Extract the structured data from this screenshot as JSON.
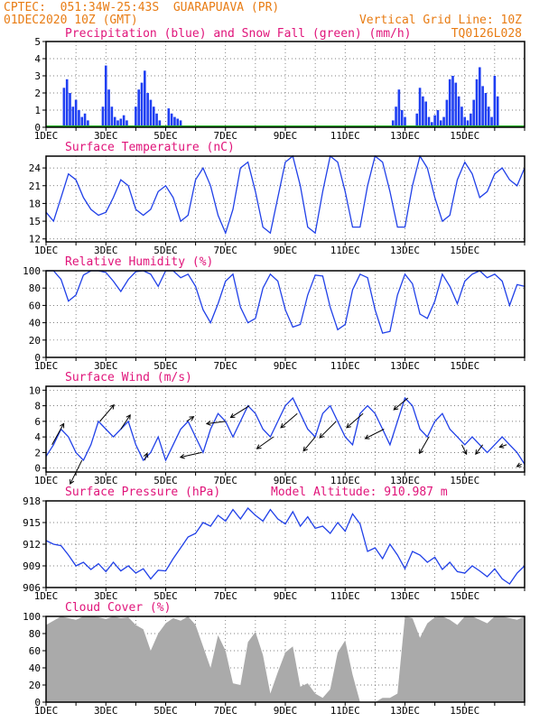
{
  "header": {
    "line1": "CPTEC:  051:34W-25:43S  GUARAPUAVA (PR)",
    "line2": "01DEC2020 10Z (GMT)",
    "grid_note": "Vertical Grid Line: 10Z",
    "code": "TQ0126L028"
  },
  "x_axis": {
    "ticks": [
      "1DEC",
      "3DEC",
      "5DEC",
      "7DEC",
      "9DEC",
      "11DEC",
      "13DEC",
      "15DEC"
    ]
  },
  "chart_data": [
    {
      "id": "precip",
      "type": "bar",
      "title": "Precipitation (blue) and Snow Fall (green) (mm/h)",
      "ylim": [
        0,
        5
      ],
      "yticks": [
        0,
        1,
        2,
        3,
        4,
        5
      ],
      "series": [
        {
          "name": "Precipitation",
          "color": "#1f3ff2",
          "x": [
            0.6,
            0.7,
            0.8,
            0.9,
            1.0,
            1.1,
            1.2,
            1.3,
            1.4,
            1.9,
            2.0,
            2.1,
            2.2,
            2.3,
            2.4,
            2.5,
            2.6,
            2.7,
            3.0,
            3.1,
            3.2,
            3.3,
            3.4,
            3.5,
            3.6,
            3.7,
            3.8,
            4.1,
            4.2,
            4.3,
            4.4,
            4.5,
            11.6,
            11.7,
            11.8,
            11.9,
            12.0,
            12.4,
            12.5,
            12.6,
            12.7,
            12.8,
            12.9,
            13.0,
            13.1,
            13.2,
            13.3,
            13.4,
            13.5,
            13.6,
            13.7,
            13.8,
            13.9,
            14.0,
            14.1,
            14.2,
            14.3,
            14.4,
            14.5,
            14.6,
            14.7,
            14.8,
            14.9,
            15.0,
            15.1
          ],
          "values": [
            2.3,
            2.8,
            2.0,
            1.2,
            1.6,
            1.0,
            0.6,
            0.8,
            0.4,
            1.2,
            3.6,
            2.2,
            1.2,
            0.6,
            0.4,
            0.5,
            0.7,
            0.4,
            1.2,
            2.2,
            2.6,
            3.3,
            2.0,
            1.6,
            1.2,
            0.8,
            0.4,
            1.1,
            0.8,
            0.6,
            0.5,
            0.4,
            0.4,
            1.2,
            2.2,
            1.0,
            0.6,
            0.8,
            2.3,
            1.8,
            1.5,
            0.6,
            0.3,
            0.7,
            1.0,
            0.4,
            0.6,
            1.6,
            2.8,
            3.0,
            2.6,
            1.8,
            1.2,
            0.6,
            0.4,
            0.8,
            1.6,
            2.8,
            3.5,
            2.4,
            2.0,
            1.2,
            0.6,
            3.0,
            1.8
          ]
        }
      ],
      "snow_color": "#22b022"
    },
    {
      "id": "temp",
      "type": "line",
      "title": "Surface Temperature (nC)",
      "ylim": [
        11.5,
        26
      ],
      "yticks": [
        12,
        15,
        18,
        21,
        24
      ],
      "series": [
        {
          "name": "Temperature",
          "color": "#2040e8",
          "x": [
            0,
            0.25,
            0.5,
            0.75,
            1,
            1.25,
            1.5,
            1.75,
            2,
            2.25,
            2.5,
            2.75,
            3,
            3.25,
            3.5,
            3.75,
            4,
            4.25,
            4.5,
            4.75,
            5,
            5.25,
            5.5,
            5.75,
            6,
            6.25,
            6.5,
            6.75,
            7,
            7.25,
            7.5,
            7.75,
            8,
            8.25,
            8.5,
            8.75,
            9,
            9.25,
            9.5,
            9.75,
            10,
            10.25,
            10.5,
            10.75,
            11,
            11.25,
            11.5,
            11.75,
            12,
            12.25,
            12.5,
            12.75,
            13,
            13.25,
            13.5,
            13.75,
            14,
            14.25,
            14.5,
            14.75,
            15,
            15.25,
            15.5,
            15.75,
            16
          ],
          "values": [
            16.5,
            15,
            19,
            23,
            22,
            19,
            17,
            16,
            16.5,
            19,
            22,
            21,
            17,
            16,
            17,
            20,
            21,
            19,
            15,
            16,
            22,
            24,
            21,
            16,
            13,
            17,
            24,
            25,
            20,
            14,
            13,
            19,
            25,
            26,
            21,
            14,
            13,
            20,
            26,
            25,
            20,
            14,
            14,
            21,
            26,
            25,
            20,
            14,
            14,
            21,
            26,
            24,
            19,
            15,
            16,
            22,
            25,
            23,
            19,
            20,
            23,
            24,
            22,
            21,
            24
          ]
        }
      ]
    },
    {
      "id": "rh",
      "type": "line",
      "title": "Relative Humidity (%)",
      "ylim": [
        0,
        100
      ],
      "yticks": [
        0,
        20,
        40,
        60,
        80,
        100
      ],
      "series": [
        {
          "name": "Relative Humidity",
          "color": "#2040e8",
          "x": [
            0,
            0.25,
            0.5,
            0.75,
            1,
            1.25,
            1.5,
            1.75,
            2,
            2.25,
            2.5,
            2.75,
            3,
            3.25,
            3.5,
            3.75,
            4,
            4.25,
            4.5,
            4.75,
            5,
            5.25,
            5.5,
            5.75,
            6,
            6.25,
            6.5,
            6.75,
            7,
            7.25,
            7.5,
            7.75,
            8,
            8.25,
            8.5,
            8.75,
            9,
            9.25,
            9.5,
            9.75,
            10,
            10.25,
            10.5,
            10.75,
            11,
            11.25,
            11.5,
            11.75,
            12,
            12.25,
            12.5,
            12.75,
            13,
            13.25,
            13.5,
            13.75,
            14,
            14.25,
            14.5,
            14.75,
            15,
            15.25,
            15.5,
            15.75,
            16
          ],
          "values": [
            100,
            100,
            90,
            65,
            72,
            95,
            100,
            100,
            98,
            88,
            76,
            90,
            99,
            100,
            96,
            82,
            100,
            100,
            92,
            96,
            82,
            55,
            40,
            62,
            88,
            96,
            58,
            40,
            45,
            80,
            96,
            88,
            55,
            35,
            38,
            72,
            95,
            94,
            58,
            32,
            38,
            78,
            96,
            92,
            55,
            28,
            30,
            72,
            96,
            85,
            50,
            45,
            65,
            96,
            82,
            62,
            88,
            96,
            100,
            92,
            96,
            88,
            60,
            84,
            82
          ]
        }
      ]
    },
    {
      "id": "wind",
      "type": "line",
      "title": "Surface Wind (m/s)",
      "ylim": [
        -0.5,
        10.5
      ],
      "yticks": [
        0,
        2,
        4,
        6,
        8,
        10
      ],
      "series": [
        {
          "name": "Wind Speed",
          "color": "#2040e8",
          "x": [
            0,
            0.25,
            0.5,
            0.75,
            1,
            1.25,
            1.5,
            1.75,
            2,
            2.25,
            2.5,
            2.75,
            3,
            3.25,
            3.5,
            3.75,
            4,
            4.25,
            4.5,
            4.75,
            5,
            5.25,
            5.5,
            5.75,
            6,
            6.25,
            6.5,
            6.75,
            7,
            7.25,
            7.5,
            7.75,
            8,
            8.25,
            8.5,
            8.75,
            9,
            9.25,
            9.5,
            9.75,
            10,
            10.25,
            10.5,
            10.75,
            11,
            11.25,
            11.5,
            11.75,
            12,
            12.25,
            12.5,
            12.75,
            13,
            13.25,
            13.5,
            13.75,
            14,
            14.25,
            14.5,
            14.75,
            15,
            15.25,
            15.5,
            15.75,
            16
          ],
          "values": [
            1.5,
            3,
            5,
            4,
            2,
            1,
            3,
            6,
            5,
            4,
            5,
            6,
            3,
            1,
            2,
            4,
            1,
            3,
            5,
            6,
            4,
            2,
            5,
            7,
            6,
            4,
            6,
            8,
            7,
            5,
            4,
            6,
            8,
            9,
            7,
            5,
            4,
            7,
            8,
            6,
            4,
            3,
            7,
            8,
            7,
            5,
            3,
            6,
            9,
            8,
            5,
            4,
            6,
            7,
            5,
            4,
            3,
            4,
            3,
            2,
            3,
            4,
            3,
            2,
            0.5
          ]
        }
      ],
      "vectors": [
        {
          "x": 0.2,
          "dx": 0.5,
          "dy": -0.9
        },
        {
          "x": 1.2,
          "dx": -0.5,
          "dy": 1.0
        },
        {
          "x": 1.8,
          "dx": 0.6,
          "dy": -0.7
        },
        {
          "x": 2.5,
          "dx": 0.4,
          "dy": -0.6
        },
        {
          "x": 3.3,
          "dx": 0.1,
          "dy": -0.3
        },
        {
          "x": 4.7,
          "dx": 0.3,
          "dy": -0.2
        },
        {
          "x": 5.2,
          "dx": -0.9,
          "dy": 0.2
        },
        {
          "x": 6.0,
          "dx": -0.8,
          "dy": 0.1
        },
        {
          "x": 6.8,
          "dx": -0.8,
          "dy": 0.5
        },
        {
          "x": 7.6,
          "dx": -0.7,
          "dy": 0.5
        },
        {
          "x": 8.4,
          "dx": -0.7,
          "dy": 0.6
        },
        {
          "x": 9.0,
          "dx": -0.5,
          "dy": 0.6
        },
        {
          "x": 9.7,
          "dx": -0.7,
          "dy": 0.7
        },
        {
          "x": 10.6,
          "dx": -0.7,
          "dy": 0.6
        },
        {
          "x": 11.3,
          "dx": -0.8,
          "dy": 0.4
        },
        {
          "x": 12.1,
          "dx": -0.6,
          "dy": 0.5
        },
        {
          "x": 12.8,
          "dx": -0.4,
          "dy": 0.7
        },
        {
          "x": 13.9,
          "dx": 0.2,
          "dy": 0.4
        },
        {
          "x": 14.6,
          "dx": -0.3,
          "dy": 0.4
        },
        {
          "x": 15.4,
          "dx": -0.3,
          "dy": 0.1
        },
        {
          "x": 15.9,
          "dx": -0.2,
          "dy": 0.1
        }
      ]
    },
    {
      "id": "pressure",
      "type": "line",
      "title": "Surface Pressure (hPa)",
      "note": "Model Altitude: 910.987 m",
      "ylim": [
        906,
        918
      ],
      "yticks": [
        906,
        909,
        912,
        915,
        918
      ],
      "series": [
        {
          "name": "Surface Pressure",
          "color": "#2040e8",
          "x": [
            0,
            0.25,
            0.5,
            0.75,
            1,
            1.25,
            1.5,
            1.75,
            2,
            2.25,
            2.5,
            2.75,
            3,
            3.25,
            3.5,
            3.75,
            4,
            4.25,
            4.5,
            4.75,
            5,
            5.25,
            5.5,
            5.75,
            6,
            6.25,
            6.5,
            6.75,
            7,
            7.25,
            7.5,
            7.75,
            8,
            8.25,
            8.5,
            8.75,
            9,
            9.25,
            9.5,
            9.75,
            10,
            10.25,
            10.5,
            10.75,
            11,
            11.25,
            11.5,
            11.75,
            12,
            12.25,
            12.5,
            12.75,
            13,
            13.25,
            13.5,
            13.75,
            14,
            14.25,
            14.5,
            14.75,
            15,
            15.25,
            15.5,
            15.75,
            16
          ],
          "values": [
            912.5,
            912,
            911.8,
            910.5,
            909,
            909.5,
            908.5,
            909.3,
            908.2,
            909.5,
            908.3,
            909,
            908,
            908.6,
            907.2,
            908.4,
            908.3,
            910,
            911.5,
            913,
            913.5,
            915,
            914.5,
            916,
            915.2,
            916.8,
            915.5,
            917,
            916,
            915.2,
            916.8,
            915.5,
            914.8,
            916.5,
            914.5,
            915.8,
            914.2,
            914.5,
            913.5,
            915,
            913.8,
            916.2,
            914.8,
            911,
            911.5,
            910,
            912,
            910.5,
            908.6,
            911,
            910.5,
            909.5,
            910.2,
            908.5,
            909.5,
            908.2,
            908,
            909,
            908.3,
            907.5,
            908.6,
            907.2,
            906.5,
            908,
            909
          ]
        }
      ]
    },
    {
      "id": "cloud",
      "type": "area",
      "title": "Cloud Cover (%)",
      "ylim": [
        0,
        100
      ],
      "yticks": [
        0,
        20,
        40,
        60,
        80,
        100
      ],
      "series": [
        {
          "name": "Cloud Cover",
          "color": "#aaaaaa",
          "x": [
            0,
            0.25,
            0.5,
            0.75,
            1,
            1.25,
            1.5,
            1.75,
            2,
            2.25,
            2.5,
            2.75,
            3,
            3.25,
            3.5,
            3.75,
            4,
            4.25,
            4.5,
            4.75,
            5,
            5.25,
            5.5,
            5.75,
            6,
            6.25,
            6.5,
            6.75,
            7,
            7.25,
            7.5,
            7.75,
            8,
            8.25,
            8.5,
            8.75,
            9,
            9.25,
            9.5,
            9.75,
            10,
            10.25,
            10.5,
            10.75,
            11,
            11.25,
            11.5,
            11.75,
            12,
            12.25,
            12.5,
            12.75,
            13,
            13.25,
            13.5,
            13.75,
            14,
            14.25,
            14.5,
            14.75,
            15,
            15.25,
            15.5,
            15.75,
            16
          ],
          "values": [
            90,
            95,
            100,
            98,
            96,
            100,
            100,
            99,
            97,
            100,
            98,
            99,
            90,
            85,
            60,
            80,
            92,
            98,
            95,
            100,
            90,
            65,
            40,
            78,
            60,
            22,
            20,
            70,
            82,
            55,
            10,
            35,
            58,
            65,
            18,
            22,
            10,
            5,
            15,
            58,
            72,
            32,
            0,
            0,
            0,
            5,
            5,
            10,
            100,
            98,
            75,
            92,
            99,
            100,
            96,
            90,
            100,
            100,
            96,
            92,
            100,
            100,
            98,
            96,
            100
          ]
        }
      ]
    }
  ]
}
